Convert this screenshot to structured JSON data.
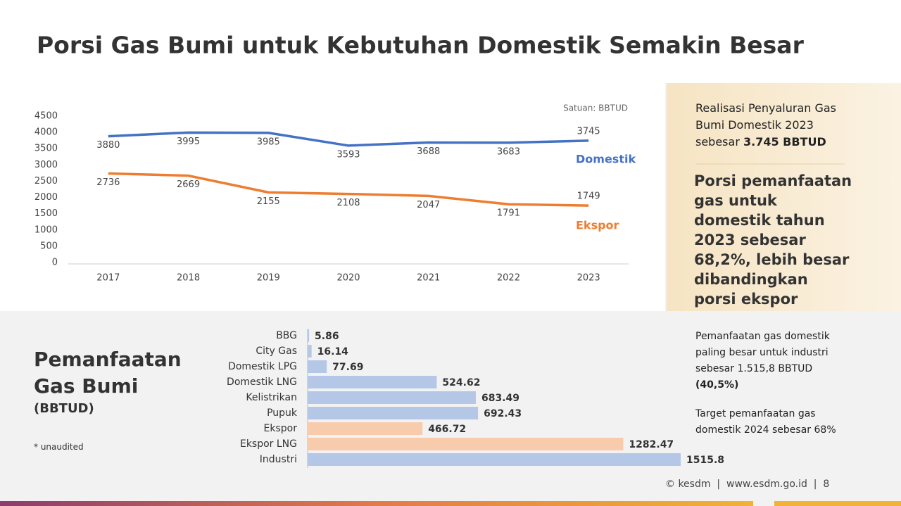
{
  "title": "Porsi Gas Bumi untuk Kebutuhan Domestik Semakin Besar",
  "chart_data": [
    {
      "type": "line",
      "unit_note": "Satuan: BBTUD",
      "categories": [
        "2017",
        "2018",
        "2019",
        "2020",
        "2021",
        "2022",
        "2023"
      ],
      "ylim": [
        0,
        4500
      ],
      "yticks": [
        0,
        500,
        1000,
        1500,
        2000,
        2500,
        3000,
        3500,
        4000,
        4500
      ],
      "series": [
        {
          "name": "Domestik",
          "color": "#4472c4",
          "values": [
            3880,
            3995,
            3985,
            3593,
            3688,
            3683,
            3745
          ]
        },
        {
          "name": "Ekspor",
          "color": "#ed7d31",
          "values": [
            2736,
            2669,
            2155,
            2108,
            2047,
            1791,
            1749
          ]
        }
      ]
    },
    {
      "type": "hbar",
      "title": "Pemanfaatan Gas Bumi",
      "subtitle": "(BBTUD)",
      "note": "* unaudited",
      "categories": [
        "BBG",
        "City Gas",
        "Domestik LPG",
        "Domestik LNG",
        "Kelistrikan",
        "Pupuk",
        "Ekspor",
        "Ekspor LNG",
        "Industri"
      ],
      "values": [
        5.86,
        16.14,
        77.69,
        524.62,
        683.49,
        692.43,
        466.72,
        1282.47,
        1515.8
      ],
      "colors": [
        "#b4c7e7",
        "#b4c7e7",
        "#b4c7e7",
        "#b4c7e7",
        "#b4c7e7",
        "#b4c7e7",
        "#f8cbad",
        "#f8cbad",
        "#b4c7e7"
      ]
    }
  ],
  "side_panel": {
    "intro": "Realisasi Penyaluran Gas Bumi Domestik 2023 sebesar ",
    "intro_bold": "3.745 BBTUD",
    "highlight": "Porsi pemanfaatan gas untuk domestik tahun 2023 sebesar 68,2%, lebih besar dibandingkan porsi ekspor"
  },
  "notes": {
    "first": "Pemanfaatan gas domestik paling besar untuk industri sebesar 1.515,8 BBTUD",
    "first_bold": "(40,5%)",
    "second": "Target pemanfaatan gas domestik 2024 sebesar 68%"
  },
  "footer": {
    "brand": "kesdm",
    "site": "www.esdm.go.id",
    "page": "8"
  }
}
